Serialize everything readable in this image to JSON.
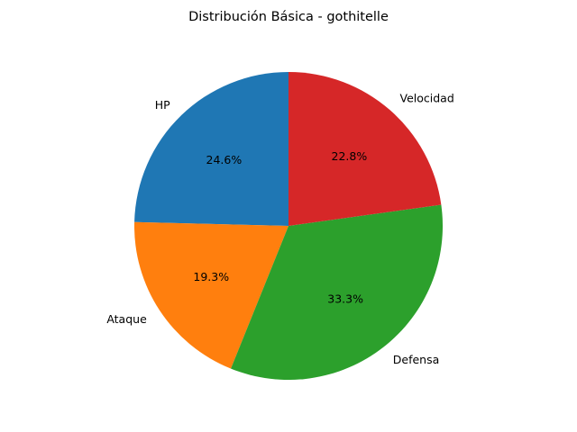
{
  "chart_data": {
    "type": "pie",
    "title": "Distribución Básica - gothitelle",
    "start_angle_deg": 90,
    "direction": "counterclockwise",
    "slices": [
      {
        "label": "HP",
        "value": 24.6,
        "pct_text": "24.6%",
        "color": "#1f77b4"
      },
      {
        "label": "Ataque",
        "value": 19.3,
        "pct_text": "19.3%",
        "color": "#ff7f0e"
      },
      {
        "label": "Defensa",
        "value": 33.3,
        "pct_text": "33.3%",
        "color": "#2ca02c"
      },
      {
        "label": "Velocidad",
        "value": 22.8,
        "pct_text": "22.8%",
        "color": "#d62728"
      }
    ]
  }
}
